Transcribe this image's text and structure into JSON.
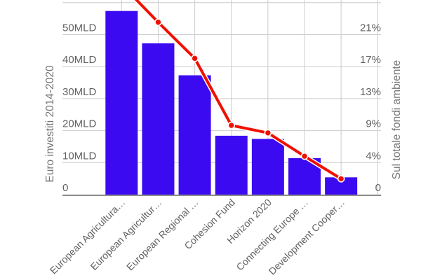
{
  "chart_data": {
    "type": "combo-bar-line",
    "title": "",
    "categories": [
      "European Agricultura…",
      "European Agricultur…",
      "European Regional …",
      "Cohesion Fund",
      "Horizon 2020",
      "Connecting Europe …",
      "Development Cooper…"
    ],
    "series": [
      {
        "name": "Euro investiti 2014-2020",
        "type": "bar",
        "unit": "MLD",
        "axis": "left",
        "color": "#3B0AF1",
        "values": [
          57.4,
          47.3,
          37.3,
          18.4,
          17.4,
          11.4,
          5.4
        ]
      },
      {
        "name": "Sul totale fondi ambiente",
        "type": "line",
        "unit": "%",
        "axis": "right",
        "color": "#F01000",
        "values": [
          27.9,
          22.9,
          18.1,
          9.2,
          8.2,
          5.1,
          2.1
        ]
      }
    ],
    "left_axis": {
      "title": "Euro investiti 2014-2020",
      "tick_labels": [
        "0",
        "10MLD",
        "20MLD",
        "30MLD",
        "40MLD",
        "50MLD"
      ],
      "tick_values": [
        0,
        10,
        20,
        30,
        40,
        50
      ],
      "visible_range": [
        0,
        60
      ]
    },
    "right_axis": {
      "title": "Sul totale fondi ambiente",
      "tick_labels": [
        "0",
        "4%",
        "9%",
        "13%",
        "17%",
        "21%"
      ],
      "tick_values": [
        0,
        4.25,
        8.5,
        12.75,
        17,
        21.25
      ]
    },
    "legend": "none",
    "grid": true,
    "colors": {
      "bar": "#3B0AF1",
      "line": "#F01000",
      "gridline": "#CCCCCC",
      "baseline": "#8C8C8C",
      "tick_text": "#616161",
      "axis_title_text": "#757575"
    }
  }
}
